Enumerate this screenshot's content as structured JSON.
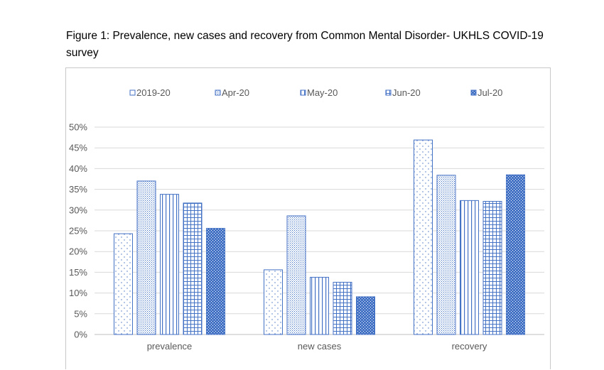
{
  "title": "Figure 1: Prevalence, new cases and recovery from Common Mental Disorder- UKHLS COVID-19 survey",
  "chart_data": {
    "type": "bar",
    "categories": [
      "prevalence",
      "new cases",
      "recovery"
    ],
    "series": [
      {
        "name": "2019-20",
        "values": [
          24.3,
          15.6,
          46.9
        ],
        "color": "#ffffff",
        "pattern": "dots-sparse"
      },
      {
        "name": "Apr-20",
        "values": [
          37.0,
          28.6,
          38.4
        ],
        "color": "#ffffff",
        "pattern": "dots-dense"
      },
      {
        "name": "May-20",
        "values": [
          33.8,
          13.8,
          32.3
        ],
        "color": "#ffffff",
        "pattern": "vertical-lines"
      },
      {
        "name": "Jun-20",
        "values": [
          31.7,
          12.6,
          32.1
        ],
        "color": "#ffffff",
        "pattern": "grid"
      },
      {
        "name": "Jul-20",
        "values": [
          25.6,
          9.1,
          38.5
        ],
        "color": "#4472c4",
        "pattern": "solid-dotted"
      }
    ],
    "y_ticks": [
      "0%",
      "5%",
      "10%",
      "15%",
      "20%",
      "25%",
      "30%",
      "35%",
      "40%",
      "45%",
      "50%"
    ],
    "ylim": [
      0,
      50
    ],
    "grid": true,
    "legend_position": "top",
    "colors": {
      "accent": "#4472c4",
      "border": "#4472c4",
      "grid": "#d9d9d9",
      "text": "#595959"
    }
  }
}
